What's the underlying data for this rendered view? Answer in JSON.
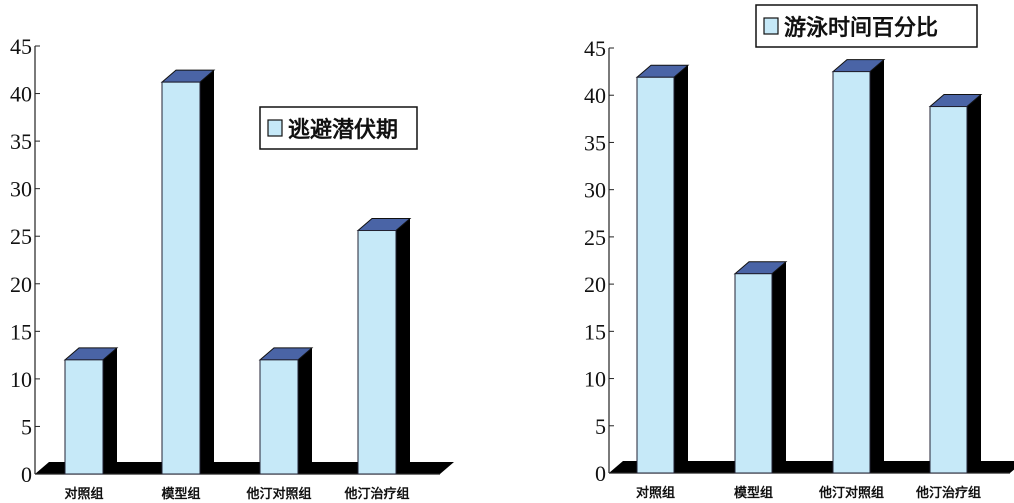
{
  "colors": {
    "front": "#c6e9f8",
    "top": "#4a64a6",
    "side": "#000000",
    "floor": "#000000"
  },
  "chart_data": [
    {
      "type": "bar",
      "style": "3d",
      "categories": [
        "对照组",
        "模型组",
        "他汀对照组",
        "他汀治疗组"
      ],
      "series": [
        {
          "name": "逃避潜伏期",
          "values": [
            12,
            41.2,
            12,
            25.6
          ]
        }
      ],
      "ylim": [
        0,
        45
      ],
      "yticks": [
        "0",
        "5",
        "10",
        "15",
        "20",
        "25",
        "30",
        "35",
        "40",
        "45"
      ],
      "grid": false,
      "legend": "top-right"
    },
    {
      "type": "bar",
      "style": "3d",
      "categories": [
        "对照组",
        "模型组",
        "他汀对照组",
        "他汀治疗组"
      ],
      "series": [
        {
          "name": "游泳时间百分比",
          "values": [
            41.9,
            21.1,
            42.5,
            38.8
          ]
        }
      ],
      "ylim": [
        0,
        45
      ],
      "yticks": [
        "0",
        "5",
        "10",
        "15",
        "20",
        "25",
        "30",
        "35",
        "40",
        "45"
      ],
      "grid": false,
      "legend": "top-right"
    }
  ]
}
